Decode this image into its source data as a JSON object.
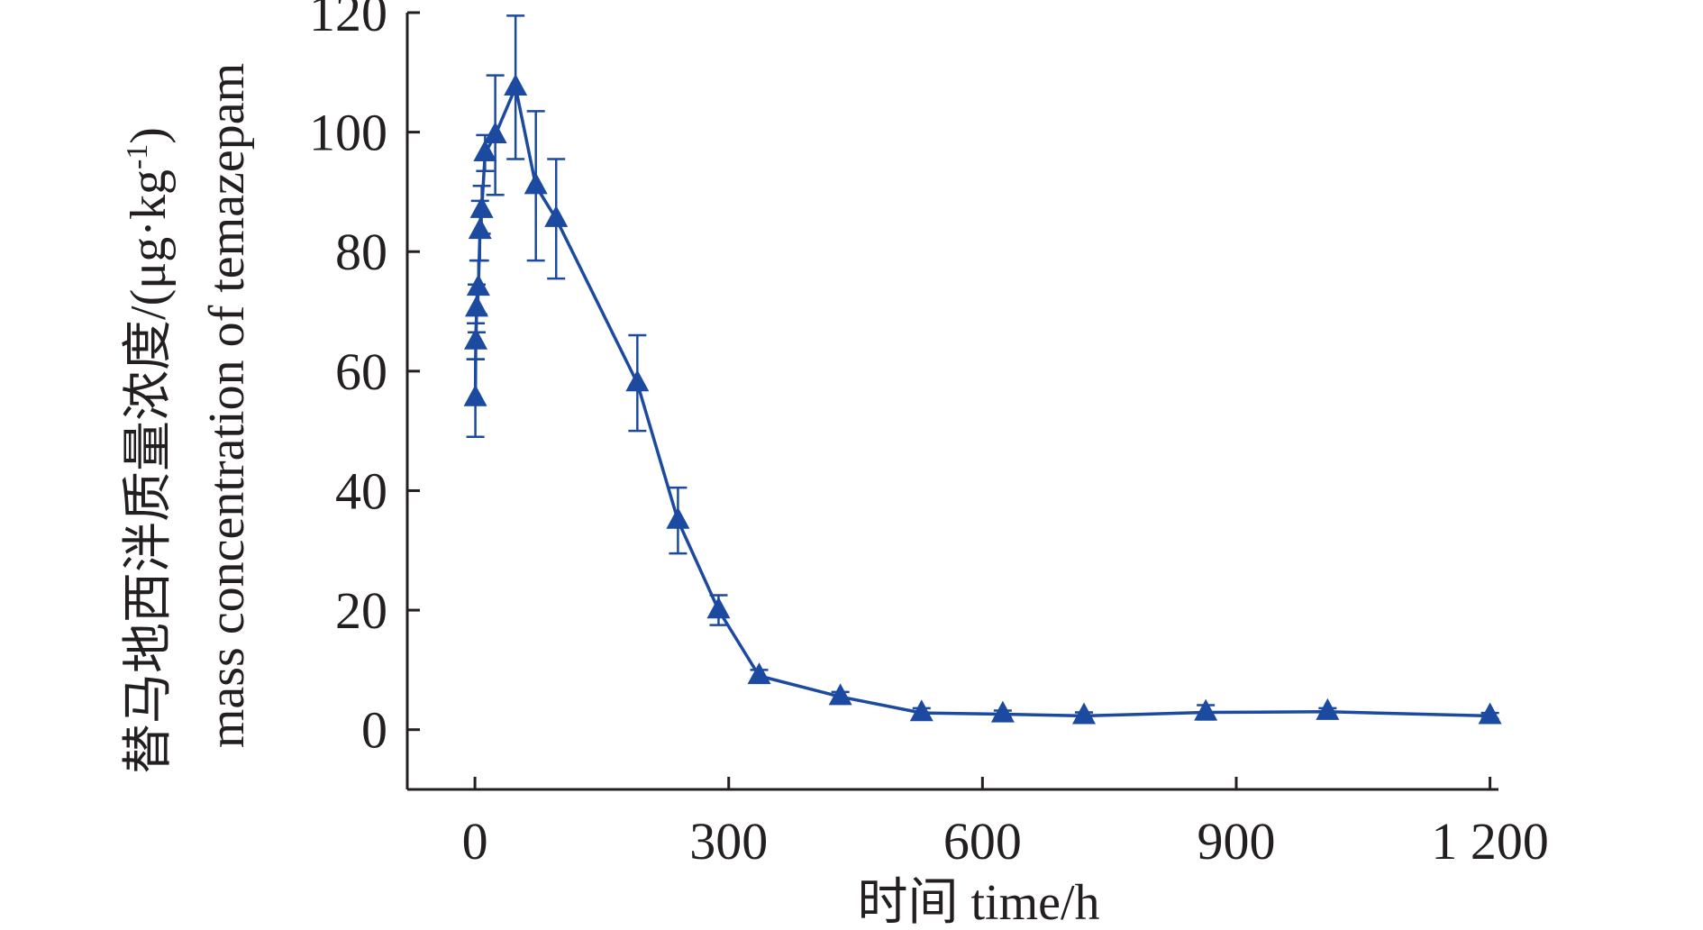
{
  "chart_data": {
    "type": "line",
    "title": "",
    "xlabel": "时间 time/h",
    "ylabel_cn": "替马地西泮质量浓度/(μg·kg",
    "ylabel_sup": "-1",
    "ylabel_close": ")",
    "ylabel_en": "mass concentration of temazepam",
    "xlim": [
      -80,
      1210
    ],
    "ylim": [
      -10,
      120
    ],
    "x_ticks": [
      0,
      300,
      600,
      900,
      1200
    ],
    "x_tick_labels": [
      "0",
      "300",
      "600",
      "900",
      "1 200"
    ],
    "y_ticks": [
      0,
      20,
      40,
      60,
      80,
      100,
      120
    ],
    "y_tick_labels": [
      "0",
      "20",
      "40",
      "60",
      "80",
      "100",
      "120"
    ],
    "grid": false,
    "series_color": "#1b4aa0",
    "series": [
      {
        "marker": "triangle",
        "x": [
          0.5,
          1,
          2,
          4,
          6,
          8,
          12,
          24,
          48,
          72,
          96,
          192,
          240,
          288,
          336,
          432,
          528,
          624,
          720,
          864,
          1008,
          1200
        ],
        "y": [
          55.5,
          65,
          70.5,
          74,
          83.5,
          87,
          96.5,
          99.5,
          107.5,
          91,
          85.5,
          58,
          35,
          20,
          9,
          5.5,
          2.8,
          2.6,
          2.3,
          2.9,
          3,
          2.3
        ],
        "err": [
          6.5,
          3,
          4,
          4.5,
          5,
          4,
          3,
          10,
          12,
          12.5,
          10,
          8,
          5.5,
          2.5,
          1,
          0.8,
          0.8,
          0.6,
          0.6,
          1.2,
          0.6,
          0.5
        ]
      }
    ]
  }
}
